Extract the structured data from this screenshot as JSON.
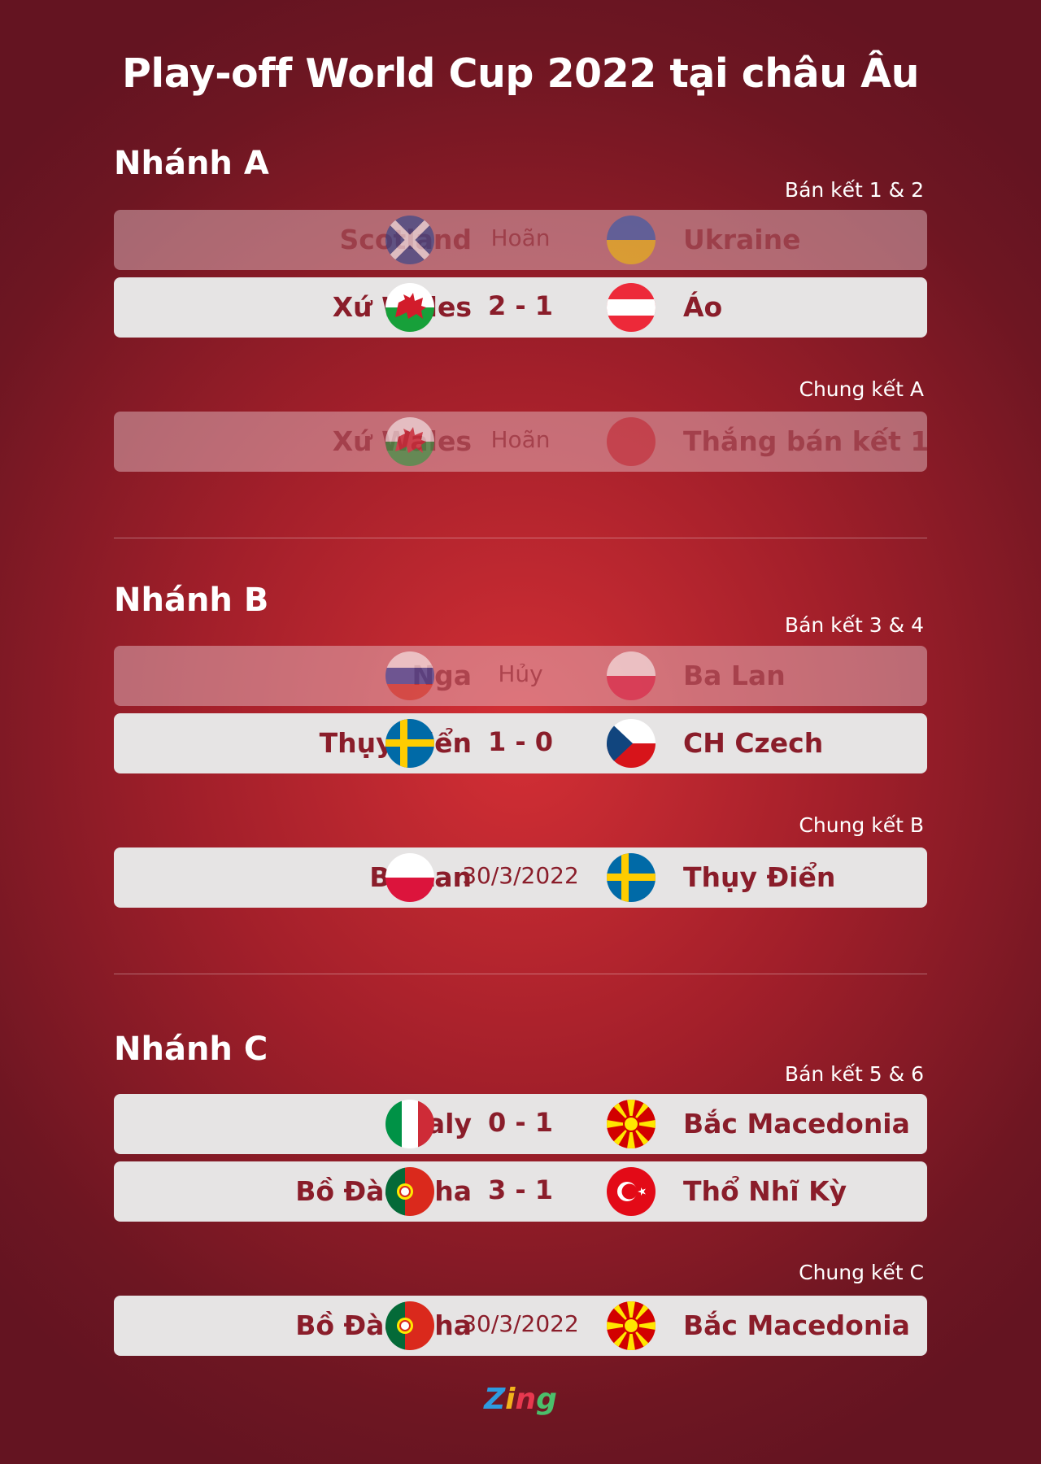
{
  "title": "Play-off World Cup 2022 tại châu Âu",
  "branches": [
    {
      "name": "Nhánh A",
      "semi_label": "Bán kết 1 & 2",
      "final_label": "Chung kết A",
      "semis": [
        {
          "home": "Scotland",
          "home_flag": "scotland",
          "result": "Hoãn",
          "away": "Ukraine",
          "away_flag": "ukraine",
          "dimmed": true
        },
        {
          "home": "Xứ Wales",
          "home_flag": "wales",
          "result": "2 - 1",
          "away": "Áo",
          "away_flag": "austria",
          "dimmed": false
        }
      ],
      "final": {
        "home": "Xứ Wales",
        "home_flag": "wales",
        "result": "Hoãn",
        "away": "Thắng bán kết 1",
        "away_flag": "blank",
        "dimmed": true
      }
    },
    {
      "name": "Nhánh B",
      "semi_label": "Bán kết 3 & 4",
      "final_label": "Chung kết B",
      "semis": [
        {
          "home": "Nga",
          "home_flag": "russia",
          "result": "Hủy",
          "away": "Ba Lan",
          "away_flag": "poland",
          "dimmed": true
        },
        {
          "home": "Thụy Điển",
          "home_flag": "sweden",
          "result": "1 - 0",
          "away": "CH Czech",
          "away_flag": "czech",
          "dimmed": false
        }
      ],
      "final": {
        "home": "Ba Lan",
        "home_flag": "poland",
        "result": "30/3/2022",
        "away": "Thụy Điển",
        "away_flag": "sweden",
        "dimmed": false
      }
    },
    {
      "name": "Nhánh C",
      "semi_label": "Bán kết 5 & 6",
      "final_label": "Chung kết C",
      "semis": [
        {
          "home": "Italy",
          "home_flag": "italy",
          "result": "0 - 1",
          "away": "Bắc Macedonia",
          "away_flag": "macedonia",
          "dimmed": false
        },
        {
          "home": "Bồ Đào Nha",
          "home_flag": "portugal",
          "result": "3 - 1",
          "away": "Thổ Nhĩ Kỳ",
          "away_flag": "turkey",
          "dimmed": false
        }
      ],
      "final": {
        "home": "Bồ Đào Nha",
        "home_flag": "portugal",
        "result": "30/3/2022",
        "away": "Bắc Macedonia",
        "away_flag": "macedonia",
        "dimmed": false
      }
    }
  ],
  "logo": "Zing"
}
